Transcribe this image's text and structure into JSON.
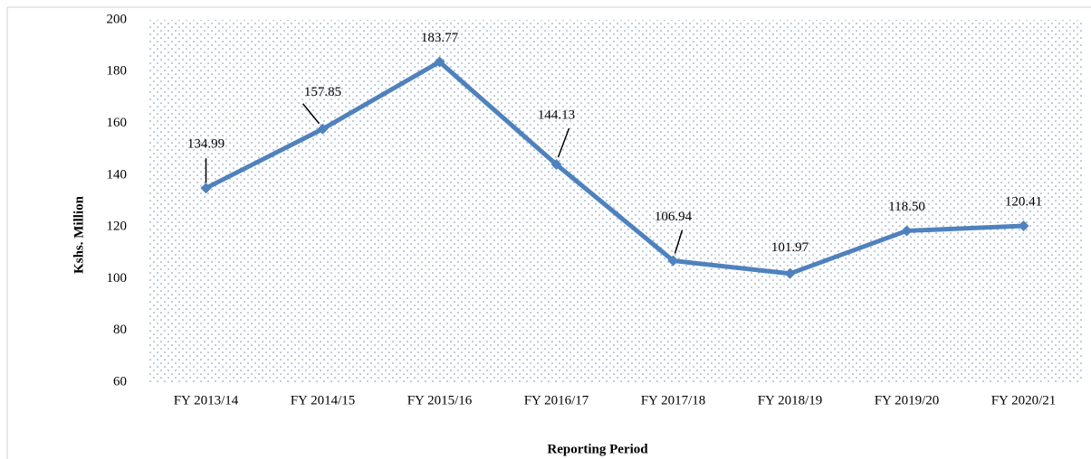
{
  "chart_data": {
    "type": "line",
    "categories": [
      "FY 2013/14",
      "FY 2014/15",
      "FY 2015/16",
      "FY 2016/17",
      "FY 2017/18",
      "FY 2018/19",
      "FY 2019/20",
      "FY 2020/21"
    ],
    "series": [
      {
        "color": "#4f81bd",
        "values": [
          134.99,
          157.85,
          183.77,
          144.13,
          106.94,
          101.97,
          118.5,
          120.41
        ],
        "value_labels": [
          "134.99",
          "157.85",
          "183.77",
          "144.13",
          "106.94",
          "101.97",
          "118.50",
          "120.41"
        ]
      }
    ],
    "ylim": [
      60,
      200
    ],
    "yticks": [
      60,
      80,
      100,
      120,
      140,
      160,
      180,
      200
    ],
    "ylabel": "Kshs. Million",
    "xlabel": "Reporting Period"
  }
}
